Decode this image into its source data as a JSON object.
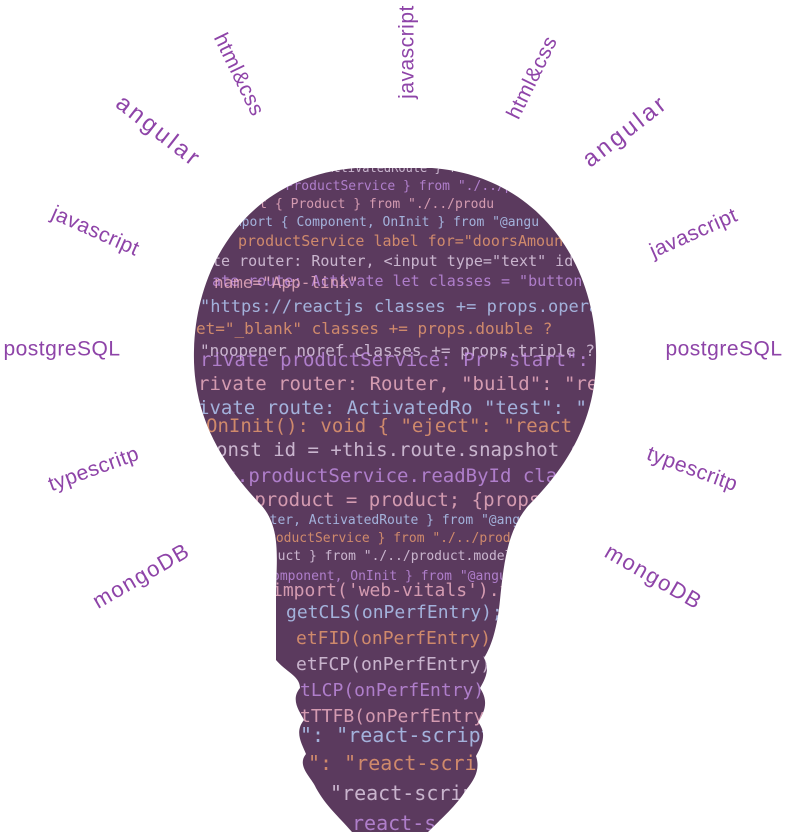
{
  "colors": {
    "label_text": "#8e44a8",
    "bulb_fill": "#5b3a5e",
    "code_text": "#e8d8ee",
    "code_keyword": "#c792ea",
    "code_string": "#f5b7c8",
    "code_accent": "#b8d4ff",
    "code_orange": "#f0a070"
  },
  "labels": [
    {
      "id": "label-javascript-top",
      "text": "javascript"
    },
    {
      "id": "label-htmlcss-left",
      "text": "html&css"
    },
    {
      "id": "label-htmlcss-right",
      "text": "html&css"
    },
    {
      "id": "label-angular-left",
      "text": "angular"
    },
    {
      "id": "label-angular-right",
      "text": "angular"
    },
    {
      "id": "label-javascript-left",
      "text": "javascript"
    },
    {
      "id": "label-javascript-right",
      "text": "javascript"
    },
    {
      "id": "label-postgresql-left",
      "text": "postgreSQL"
    },
    {
      "id": "label-postgresql-right",
      "text": "postgreSQL"
    },
    {
      "id": "label-typescript-left",
      "text": "typescritp"
    },
    {
      "id": "label-typescript-right",
      "text": "typescritp"
    },
    {
      "id": "label-mongodb-left",
      "text": "mongoDB"
    },
    {
      "id": "label-mongodb-right",
      "text": "mongoDB"
    }
  ],
  "code_lines": [
    "ter, ActivatedRoute } from \"@angular",
    "{ ProductService } from \"./../prod",
    "mport { Product } from \"./../produ",
    "import { Component, OnInit } from \"@angu",
    "productService label for=\"doorsAmount",
    "te router: Router, <input type=\"text\" id",
    "ate route: Activate let classes = \"button \";",
    "name=\"App-link\"",
    "\"https://reactjs classes += props.operation",
    "et=\"_blank\"      classes += props.double ?",
    "\"noopener noref  classes += props.triple ?",
    "rivate productService: Pr  \"start\": \"react",
    "rivate router: Router,    \"build\": \"react",
    "ivate route: ActivatedRo  \"test\": \"react",
    "OnInit(): void {        \"eject\": \"react",
    "onst id = +this.route.snapshot onClick={",
    "is.productService.readById  className",
    "is.product = product;  {props",
    "outer, ActivatedRoute } from \"@angular",
    "roductService } from \"./../product",
    "oduct } from \"./../product.model",
    "omponent, OnInit } from \"@angular",
    "import('web-vitals').then",
    "getCLS(onPerfEntry);",
    "etFID(onPerfEntry);",
    "etFCP(onPerfEntry);",
    "tLCP(onPerfEntry);",
    "tTTFB(onPerfEntry);",
    "\": \"react-scripts",
    "\": \"react-scripts",
    "\"react-scripts",
    "react-scripts"
  ]
}
